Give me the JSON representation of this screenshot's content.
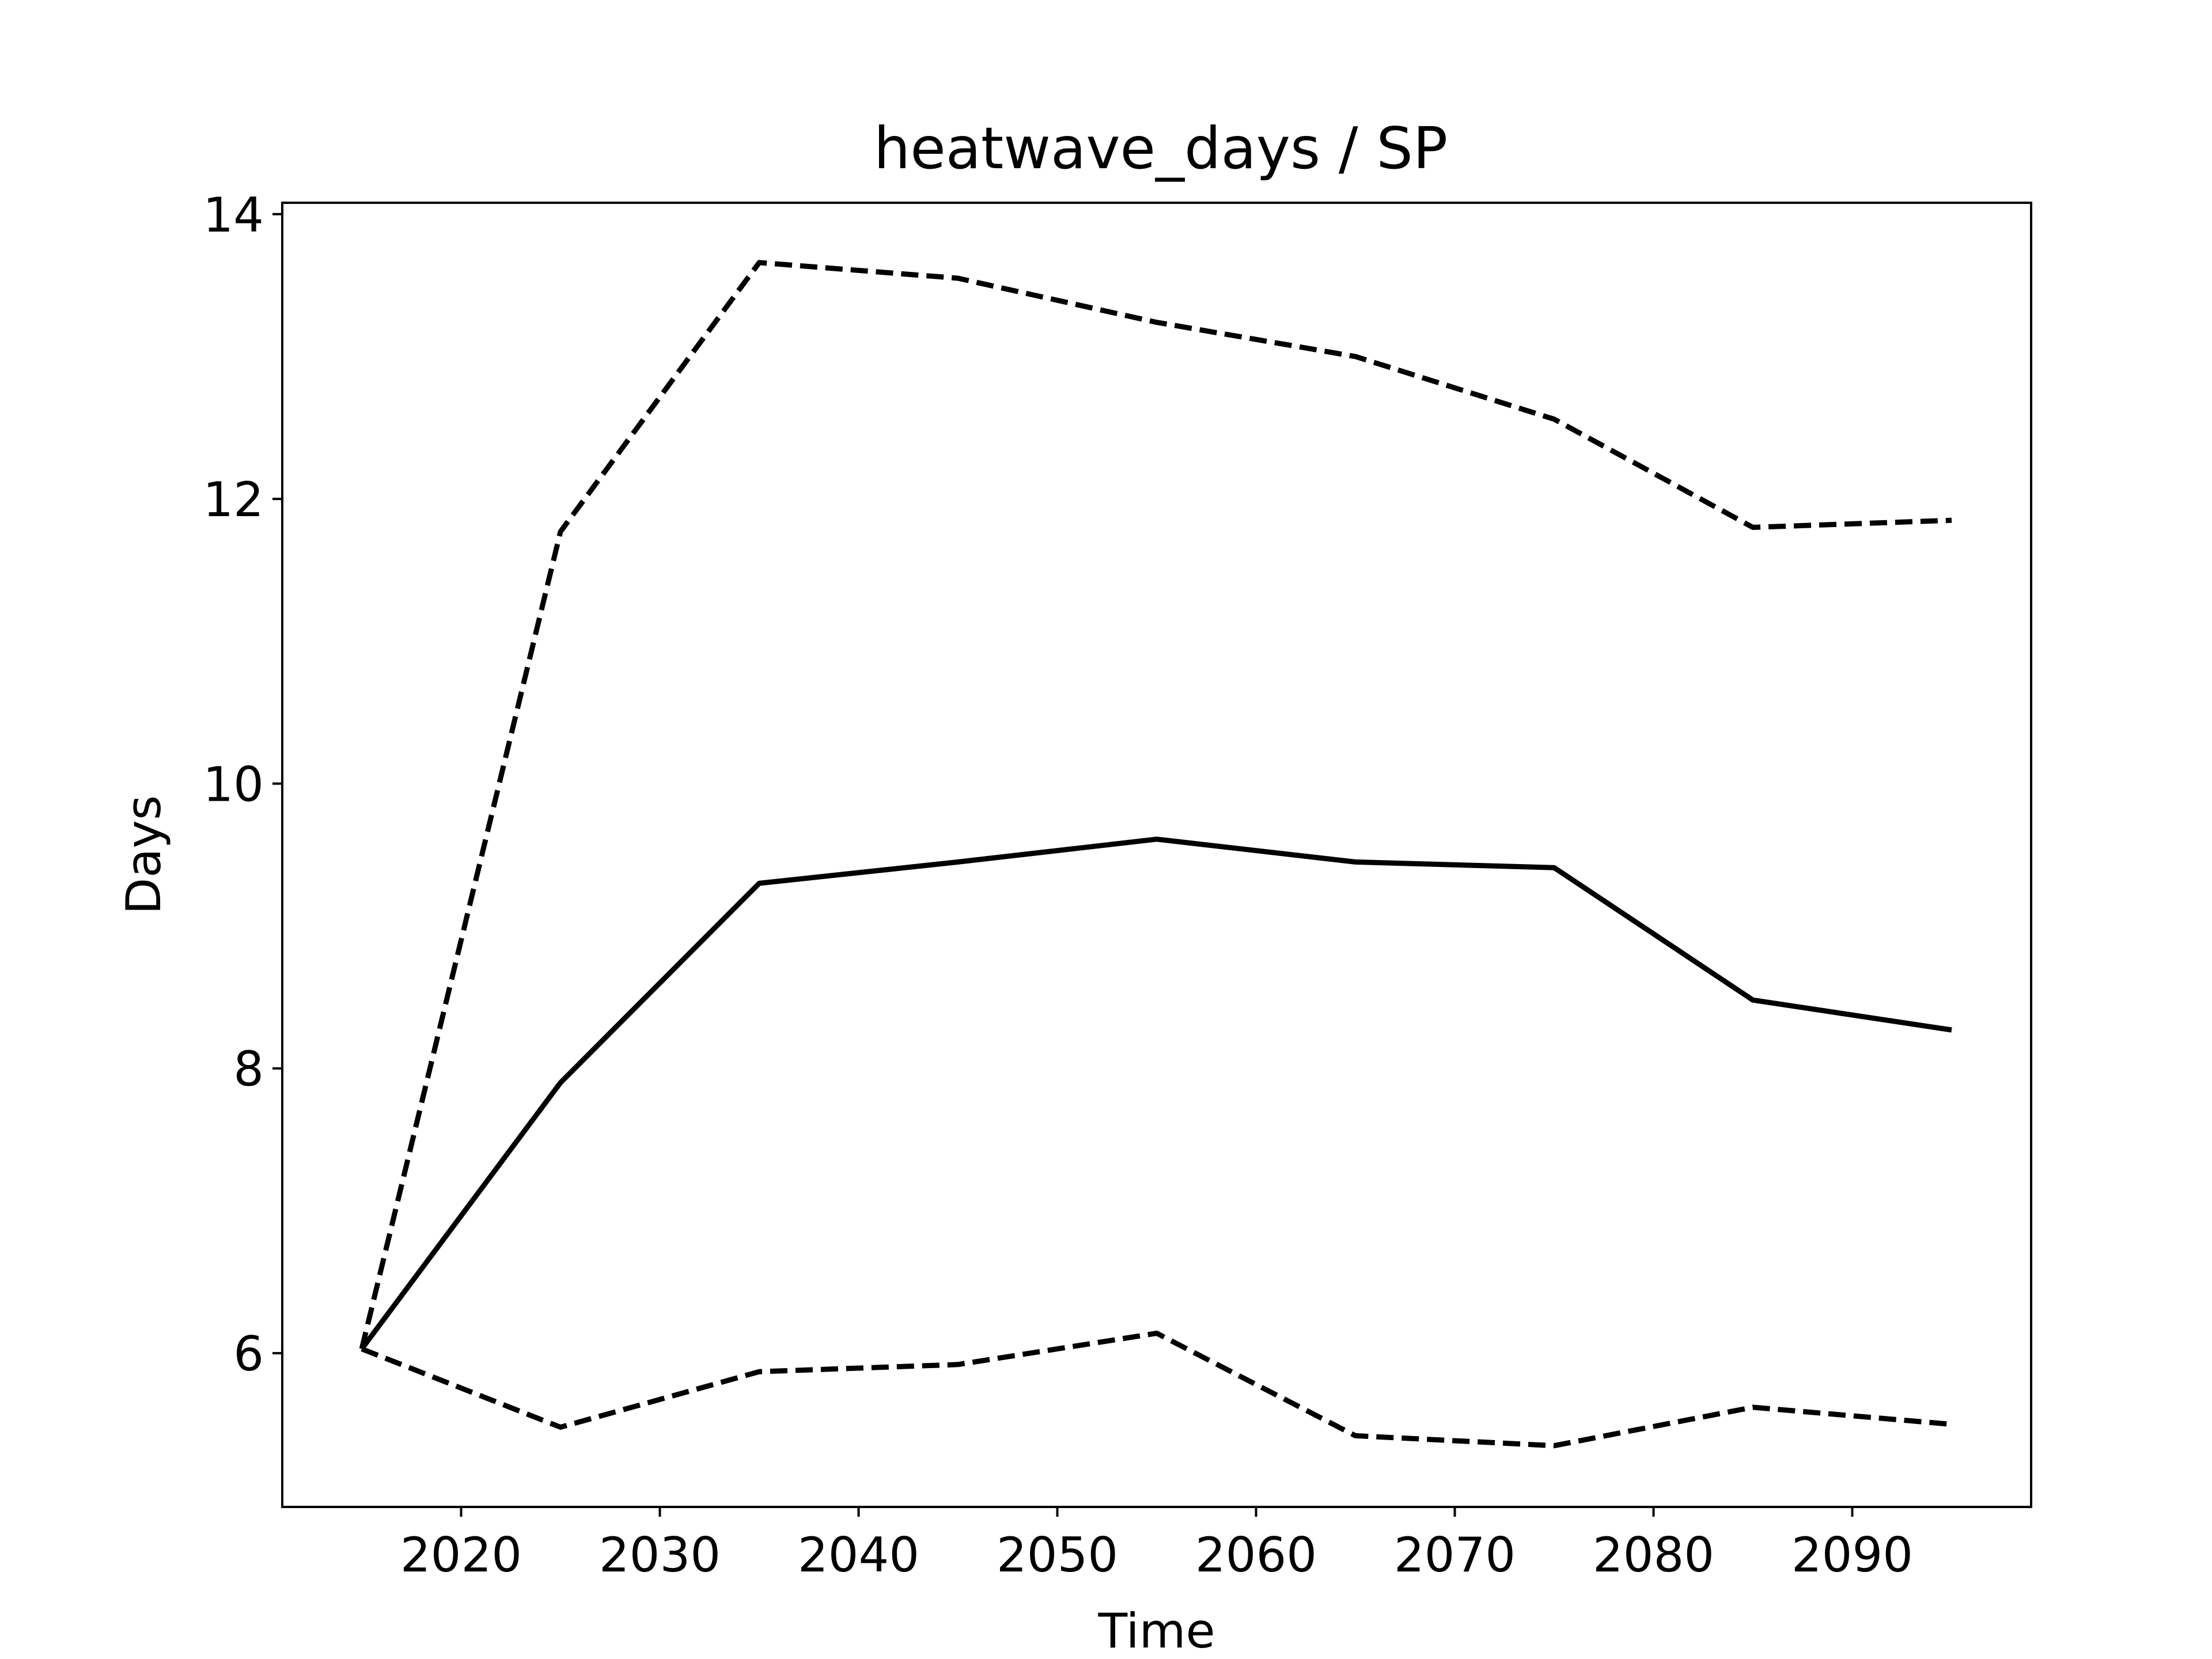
{
  "chart_data": {
    "type": "line",
    "title": "heatwave_days / SP",
    "xlabel": "Time",
    "ylabel": "Days",
    "xlim": [
      2011,
      2099
    ],
    "ylim": [
      4.92,
      14.08
    ],
    "grid": false,
    "x_ticks": [
      2020,
      2030,
      2040,
      2050,
      2060,
      2070,
      2080,
      2090
    ],
    "y_ticks": [
      6,
      8,
      10,
      12,
      14
    ],
    "x": [
      2015,
      2025,
      2035,
      2045,
      2055,
      2065,
      2075,
      2085,
      2095
    ],
    "series": [
      {
        "style": "solid",
        "color": "#000000",
        "values": [
          6.03,
          7.9,
          9.3,
          9.45,
          9.61,
          9.45,
          9.41,
          8.48,
          8.27
        ]
      },
      {
        "style": "dashed",
        "color": "#000000",
        "values": [
          6.03,
          11.77,
          13.66,
          13.55,
          13.24,
          13.0,
          12.56,
          11.8,
          11.85
        ]
      },
      {
        "style": "dashed",
        "color": "#000000",
        "values": [
          6.03,
          5.48,
          5.87,
          5.92,
          6.14,
          5.42,
          5.35,
          5.62,
          5.5
        ]
      }
    ]
  }
}
